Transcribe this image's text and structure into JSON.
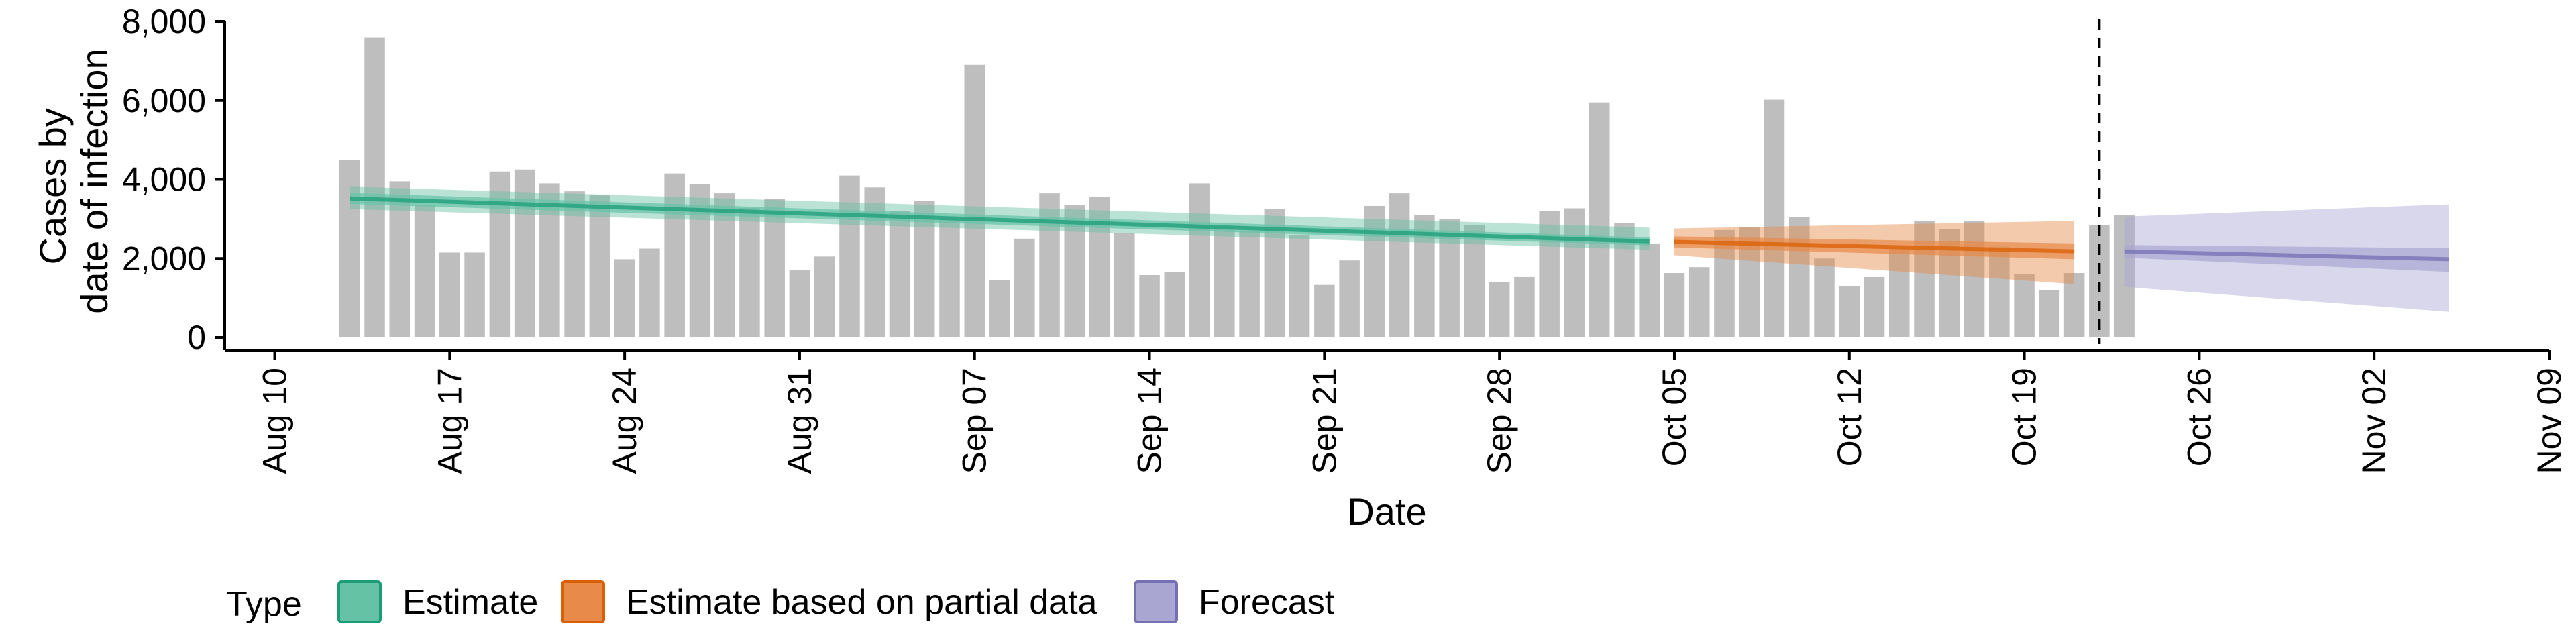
{
  "chart_data": {
    "type": "bar",
    "title": "",
    "xlabel": "Date",
    "ylabel_lines": [
      "Cases by",
      "date of infection"
    ],
    "ylim": [
      0,
      8000
    ],
    "y_ticks": [
      0,
      2000,
      4000,
      6000,
      8000
    ],
    "y_tick_labels": [
      "0",
      "2,000",
      "4,000",
      "6,000",
      "8,000"
    ],
    "x_range": [
      "2020-08-08",
      "2020-11-09"
    ],
    "x_ticks": [
      "2020-08-10",
      "2020-08-17",
      "2020-08-24",
      "2020-08-31",
      "2020-09-07",
      "2020-09-14",
      "2020-09-21",
      "2020-09-28",
      "2020-10-05",
      "2020-10-12",
      "2020-10-19",
      "2020-10-26",
      "2020-11-02",
      "2020-11-09"
    ],
    "x_tick_labels": [
      "Aug 10",
      "Aug 17",
      "Aug 24",
      "Aug 31",
      "Sep 07",
      "Sep 14",
      "Sep 21",
      "Sep 28",
      "Oct 05",
      "Oct 12",
      "Oct 19",
      "Oct 26",
      "Nov 02",
      "Nov 09"
    ],
    "bars": {
      "start_date": "2020-08-13",
      "color": "#bebebe",
      "values": [
        4500,
        7600,
        3950,
        3350,
        2150,
        2150,
        4200,
        4250,
        3900,
        3700,
        3600,
        1980,
        2250,
        4150,
        3880,
        3650,
        3280,
        3500,
        1700,
        2050,
        4100,
        3800,
        3200,
        3450,
        3000,
        6900,
        1450,
        2500,
        3650,
        3350,
        3550,
        2650,
        1580,
        1650,
        3900,
        2800,
        2700,
        3250,
        2600,
        1330,
        1950,
        3330,
        3650,
        3100,
        3000,
        2850,
        1400,
        1530,
        3200,
        3270,
        5950,
        2900,
        2380,
        1630,
        1780,
        2720,
        2800,
        6020,
        3050,
        2000,
        1300,
        1530,
        2250,
        2950,
        2750,
        2950,
        2300,
        1600,
        1200,
        1630,
        2850,
        3100
      ]
    },
    "series": [
      {
        "name": "Estimate",
        "color": "#1b9e77",
        "fill": "#66c2a5",
        "start_date": "2020-08-13",
        "end_date": "2020-10-04",
        "median": [
          3520,
          2430
        ],
        "inner": [
          [
            3380,
            3660
          ],
          [
            2330,
            2530
          ]
        ],
        "outer": [
          [
            3250,
            3820
          ],
          [
            2220,
            2780
          ]
        ]
      },
      {
        "name": "Estimate based on partial data",
        "color": "#d95f02",
        "fill": "#e78a4a",
        "start_date": "2020-10-05",
        "end_date": "2020-10-21",
        "median": [
          2420,
          2180
        ],
        "inner": [
          [
            2280,
            2560
          ],
          [
            1980,
            2380
          ]
        ],
        "outer": [
          [
            2080,
            2760
          ],
          [
            1350,
            2950
          ]
        ]
      },
      {
        "name": "Forecast",
        "color": "#7570b3",
        "fill": "#a9a6d2",
        "start_date": "2020-10-23",
        "end_date": "2020-11-05",
        "median": [
          2180,
          1980
        ],
        "inner": [
          [
            2020,
            2340
          ],
          [
            1660,
            2260
          ]
        ],
        "outer": [
          [
            1280,
            3060
          ],
          [
            650,
            3370
          ]
        ]
      }
    ],
    "vline_date": "2020-10-22",
    "legend": {
      "title": "Type",
      "position": "bottom",
      "entries": [
        {
          "label": "Estimate",
          "fill": "#66c2a5",
          "border": "#1b9e77"
        },
        {
          "label": "Estimate based on partial data",
          "fill": "#e78a4a",
          "border": "#d95f02"
        },
        {
          "label": "Forecast",
          "fill": "#a9a6d2",
          "border": "#7570b3"
        }
      ]
    },
    "grid": false
  }
}
